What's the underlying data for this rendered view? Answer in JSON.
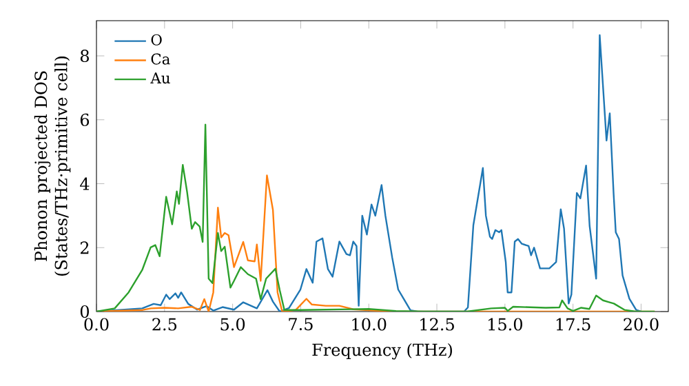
{
  "chart_data": {
    "type": "line",
    "xlabel": "Frequency (THz)",
    "ylabel": "Phonon projected DOS (States/THz·primitive cell)",
    "xlim": [
      0,
      21
    ],
    "ylim": [
      0,
      9.1
    ],
    "xticks": [
      {
        "value": 0,
        "label": "0.0"
      },
      {
        "value": 2.5,
        "label": "2.5"
      },
      {
        "value": 5,
        "label": "5.0"
      },
      {
        "value": 7.5,
        "label": "7.5"
      },
      {
        "value": 10,
        "label": "10.0"
      },
      {
        "value": 12.5,
        "label": "12.5"
      },
      {
        "value": 15,
        "label": "15.0"
      },
      {
        "value": 17.5,
        "label": "17.5"
      },
      {
        "value": 20,
        "label": "20.0"
      }
    ],
    "yticks": [
      0,
      2,
      4,
      6,
      8
    ],
    "legend": "top left",
    "grid": false,
    "marker": "none",
    "line_style": "solid",
    "series": [
      {
        "name": "O",
        "color": "#1f77b4",
        "x": [
          0,
          1.68,
          2.1,
          2.36,
          2.56,
          2.69,
          2.9,
          3.0,
          3.11,
          3.37,
          3.7,
          4.04,
          4.29,
          4.63,
          5.05,
          5.39,
          5.89,
          6.28,
          6.48,
          6.73,
          7.07,
          7.49,
          7.71,
          7.94,
          8.08,
          8.3,
          8.5,
          8.67,
          8.92,
          9.18,
          9.31,
          9.43,
          9.55,
          9.63,
          9.76,
          9.93,
          10.1,
          10.24,
          10.47,
          10.61,
          10.86,
          11.08,
          11.28,
          11.53,
          11.8,
          13.5,
          13.64,
          13.84,
          14.19,
          14.3,
          14.45,
          14.53,
          14.65,
          14.79,
          14.87,
          15.03,
          15.1,
          15.24,
          15.36,
          15.48,
          15.62,
          15.87,
          15.96,
          16.07,
          16.29,
          16.63,
          16.88,
          17.05,
          17.17,
          17.34,
          17.44,
          17.64,
          17.77,
          17.98,
          18.11,
          18.35,
          18.48,
          18.73,
          18.85,
          18.99,
          19.07,
          19.19,
          19.32,
          19.57,
          19.82,
          20.0
        ],
        "values": [
          0,
          0.1,
          0.24,
          0.2,
          0.53,
          0.39,
          0.57,
          0.43,
          0.6,
          0.24,
          0.06,
          0.17,
          0.03,
          0.14,
          0.06,
          0.29,
          0.1,
          0.67,
          0.31,
          0,
          0.11,
          0.69,
          1.33,
          0.9,
          2.19,
          2.29,
          1.33,
          1.09,
          2.19,
          1.8,
          1.76,
          2.19,
          2.05,
          0.18,
          3.0,
          2.41,
          3.35,
          3.0,
          3.96,
          3.0,
          1.69,
          0.69,
          0.4,
          0.04,
          0,
          0,
          0.13,
          2.7,
          4.49,
          3.0,
          2.34,
          2.27,
          2.55,
          2.48,
          2.55,
          1.55,
          0.6,
          0.6,
          2.19,
          2.27,
          2.12,
          2.05,
          1.76,
          2.0,
          1.35,
          1.35,
          1.55,
          3.2,
          2.6,
          0.25,
          0.53,
          3.71,
          3.54,
          4.57,
          2.68,
          1.03,
          8.65,
          5.35,
          6.2,
          3.7,
          2.48,
          2.27,
          1.13,
          0.4,
          0.05,
          0
        ]
      },
      {
        "name": "Ca",
        "color": "#ff7f0e",
        "x": [
          0,
          1.7,
          2.0,
          2.5,
          3.0,
          3.5,
          3.8,
          3.96,
          4.12,
          4.29,
          4.46,
          4.58,
          4.71,
          4.85,
          5.05,
          5.39,
          5.56,
          5.81,
          5.89,
          6.03,
          6.26,
          6.48,
          6.65,
          6.82,
          7.32,
          7.71,
          7.91,
          8.42,
          8.92,
          9.43,
          10.44,
          11.0,
          20.5
        ],
        "values": [
          0,
          0.05,
          0.1,
          0.12,
          0.1,
          0.15,
          0.05,
          0.39,
          0,
          0.6,
          3.25,
          2.32,
          2.46,
          2.39,
          1.39,
          2.18,
          1.6,
          1.57,
          2.1,
          0.96,
          4.26,
          3.18,
          0.6,
          0,
          0.05,
          0.4,
          0.22,
          0.18,
          0.18,
          0.07,
          0.02,
          0,
          0
        ]
      },
      {
        "name": "Au",
        "color": "#2ca02c",
        "x": [
          0,
          0.67,
          1.18,
          1.68,
          1.99,
          2.16,
          2.32,
          2.56,
          2.78,
          2.95,
          3.03,
          3.17,
          3.33,
          3.5,
          3.62,
          3.79,
          3.9,
          4.0,
          4.12,
          4.26,
          4.46,
          4.58,
          4.71,
          4.92,
          5.05,
          5.3,
          5.56,
          5.86,
          6.03,
          6.23,
          6.57,
          6.73,
          6.9,
          7.5,
          10.0,
          11.0,
          12.0,
          13.6,
          14.5,
          15.0,
          15.1,
          15.3,
          16.5,
          17.0,
          17.1,
          17.3,
          17.5,
          17.8,
          18.1,
          18.35,
          18.6,
          18.8,
          19.0,
          19.4,
          19.8,
          20.5
        ],
        "values": [
          0,
          0.1,
          0.6,
          1.3,
          2.01,
          2.08,
          1.73,
          3.59,
          2.73,
          3.76,
          3.37,
          4.59,
          3.73,
          2.59,
          2.8,
          2.66,
          2.18,
          5.85,
          1.03,
          0.89,
          2.46,
          1.89,
          2.03,
          0.75,
          0.96,
          1.39,
          1.17,
          1.03,
          0.39,
          1.03,
          1.34,
          0.67,
          0.05,
          0.05,
          0.08,
          0.02,
          0,
          0,
          0.1,
          0.12,
          0.02,
          0.15,
          0.12,
          0.13,
          0.35,
          0.1,
          0.02,
          0.12,
          0.08,
          0.5,
          0.35,
          0.3,
          0.25,
          0.05,
          0,
          0
        ]
      }
    ]
  }
}
